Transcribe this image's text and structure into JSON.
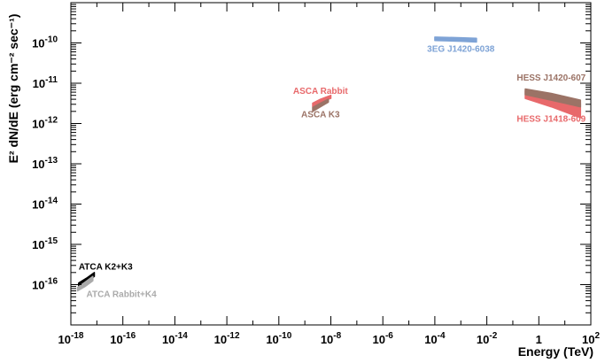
{
  "chart_data": {
    "type": "line",
    "xlabel": "Energy (TeV)",
    "ylabel": "E² dN/dE (erg cm⁻² sec⁻¹)",
    "xscale": "log",
    "yscale": "log",
    "xlim": [
      1e-18,
      100
    ],
    "ylim": [
      1e-17,
      1e-09
    ],
    "grid": false,
    "x_ticks": [
      {
        "exp": "-18",
        "value": 1e-18
      },
      {
        "exp": "-16",
        "value": 1e-16
      },
      {
        "exp": "-14",
        "value": 1e-14
      },
      {
        "exp": "-12",
        "value": 1e-12
      },
      {
        "exp": "-10",
        "value": 1e-10
      },
      {
        "exp": "-8",
        "value": 1e-08
      },
      {
        "exp": "-6",
        "value": 1e-06
      },
      {
        "exp": "-4",
        "value": 0.0001
      },
      {
        "exp": "-2",
        "value": 0.01
      },
      {
        "mant": "1",
        "value": 1
      },
      {
        "exp": "2",
        "value": 100
      }
    ],
    "y_ticks": [
      {
        "exp": "-16",
        "value": 1e-16
      },
      {
        "exp": "-15",
        "value": 1e-15
      },
      {
        "exp": "-14",
        "value": 1e-14
      },
      {
        "exp": "-13",
        "value": 1e-13
      },
      {
        "exp": "-12",
        "value": 1e-12
      },
      {
        "exp": "-11",
        "value": 1e-11
      },
      {
        "exp": "-10",
        "value": 1e-10
      }
    ],
    "series": [
      {
        "name": "ATCA K2+K3",
        "color": "#000000",
        "band": [
          {
            "x": 2e-18,
            "ylo": 9e-17,
            "yhi": 1.1e-16
          },
          {
            "x": 4e-18,
            "ylo": 1.15e-16,
            "yhi": 1.45e-16
          },
          {
            "x": 8e-18,
            "ylo": 1.6e-16,
            "yhi": 2e-16
          }
        ]
      },
      {
        "name": "ATCA Rabbit+K4",
        "color": "#aaaaaa",
        "band": [
          {
            "x": 1.8e-18,
            "ylo": 7e-17,
            "yhi": 8.5e-17
          },
          {
            "x": 3.5e-18,
            "ylo": 9e-17,
            "yhi": 1.15e-16
          },
          {
            "x": 7e-18,
            "ylo": 1.25e-16,
            "yhi": 1.6e-16
          }
        ]
      },
      {
        "name": "ASCA Rabbit",
        "color": "#e8696b",
        "band": [
          {
            "x": 2e-09,
            "ylo": 2.6e-12,
            "yhi": 3.2e-12
          },
          {
            "x": 4e-09,
            "ylo": 3.4e-12,
            "yhi": 4e-12
          },
          {
            "x": 1e-08,
            "ylo": 4.2e-12,
            "yhi": 5e-12
          }
        ]
      },
      {
        "name": "ASCA K3",
        "color": "#9b7366",
        "band": [
          {
            "x": 2e-09,
            "ylo": 2e-12,
            "yhi": 2.5e-12
          },
          {
            "x": 4e-09,
            "ylo": 2.6e-12,
            "yhi": 3.2e-12
          },
          {
            "x": 8e-09,
            "ylo": 3.4e-12,
            "yhi": 4e-12
          }
        ]
      },
      {
        "name": "3EG J1420-6038",
        "color": "#7ea3d6",
        "band": [
          {
            "x": 0.0001,
            "ylo": 1.15e-10,
            "yhi": 1.4e-10
          },
          {
            "x": 0.001,
            "ylo": 1.1e-10,
            "yhi": 1.35e-10
          },
          {
            "x": 0.004,
            "ylo": 1.05e-10,
            "yhi": 1.3e-10
          }
        ]
      },
      {
        "name": "HESS J1418-609",
        "color": "#e8696b",
        "band": [
          {
            "x": 0.3,
            "ylo": 4.2e-12,
            "yhi": 6.5e-12
          },
          {
            "x": 3,
            "ylo": 2.6e-12,
            "yhi": 4.8e-12
          },
          {
            "x": 40,
            "ylo": 1.4e-12,
            "yhi": 3.2e-12
          }
        ]
      },
      {
        "name": "HESS J1420-607",
        "color": "#9b7366",
        "band": [
          {
            "x": 0.3,
            "ylo": 5.2e-12,
            "yhi": 7.2e-12
          },
          {
            "x": 3,
            "ylo": 3.8e-12,
            "yhi": 5.6e-12
          },
          {
            "x": 40,
            "ylo": 2.6e-12,
            "yhi": 3.8e-12
          }
        ]
      }
    ]
  }
}
